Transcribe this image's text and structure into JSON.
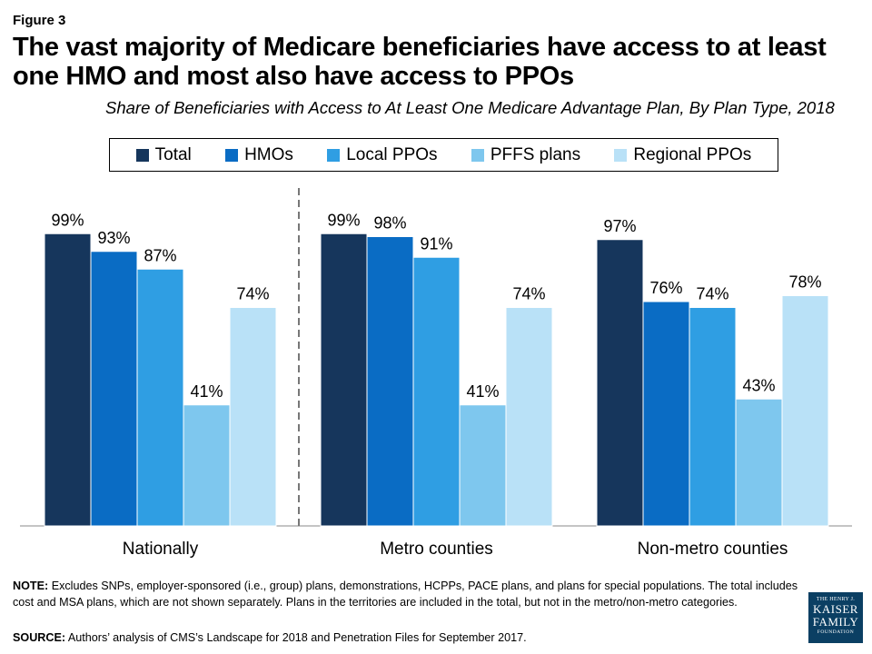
{
  "figure_label": "Figure 3",
  "title": "The vast majority of Medicare beneficiaries have access to at least one HMO and most also have access to PPOs",
  "subtitle": "Share of Beneficiaries with Access to At Least One Medicare Advantage Plan, By Plan Type, 2018",
  "legend": [
    {
      "label": "Total",
      "color": "#16365c"
    },
    {
      "label": "HMOs",
      "color": "#0a6cc4"
    },
    {
      "label": "Local PPOs",
      "color": "#2f9ee3"
    },
    {
      "label": "PFFS plans",
      "color": "#7ec7ee"
    },
    {
      "label": "Regional PPOs",
      "color": "#b9e1f7"
    }
  ],
  "chart_data": {
    "type": "bar",
    "title": "",
    "xlabel": "",
    "ylabel": "",
    "ylim": [
      0,
      100
    ],
    "grid": false,
    "legend_position": "top",
    "categories": [
      "Nationally",
      "Metro counties",
      "Non-metro counties"
    ],
    "series": [
      {
        "name": "Total",
        "values": [
          99,
          99,
          97
        ],
        "labels": [
          "99%",
          "99%",
          "97%"
        ],
        "color": "#16365c"
      },
      {
        "name": "HMOs",
        "values": [
          93,
          98,
          76
        ],
        "labels": [
          "93%",
          "98%",
          "76%"
        ],
        "color": "#0a6cc4"
      },
      {
        "name": "Local PPOs",
        "values": [
          87,
          91,
          74
        ],
        "labels": [
          "87%",
          "91%",
          "74%"
        ],
        "color": "#2f9ee3"
      },
      {
        "name": "PFFS plans",
        "values": [
          41,
          41,
          43
        ],
        "labels": [
          "41%",
          "41%",
          "43%"
        ],
        "color": "#7ec7ee"
      },
      {
        "name": "Regional PPOs",
        "values": [
          74,
          74,
          78
        ],
        "labels": [
          "74%",
          "74%",
          "78%"
        ],
        "color": "#b9e1f7"
      }
    ]
  },
  "note_label": "NOTE:",
  "note_text": "Excludes SNPs, employer-sponsored  (i.e., group) plans, demonstrations, HCPPs, PACE plans, and plans for special populations. The total includes cost and MSA plans, which are not shown separately.  Plans in the territories are included in the total, but not in the metro/non-metro  categories.",
  "source_label": "SOURCE:",
  "source_text": "Authors’ analysis of CMS’s Landscape for 2018 and Penetration Files for September 2017.",
  "logo": {
    "line1": "THE HENRY J.",
    "line2": "KAISER",
    "line3": "FAMILY",
    "line4": "FOUNDATION"
  }
}
